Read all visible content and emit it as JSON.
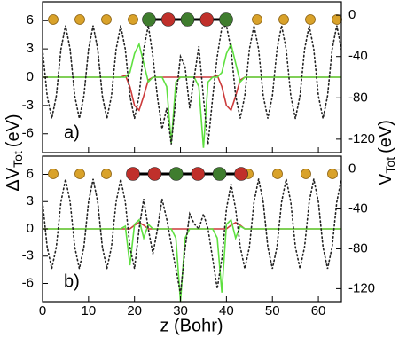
{
  "chart_data": [
    {
      "type": "line",
      "panel_label": "a)",
      "ylabel": {
        "text": "ΔV",
        "sub": "Tot",
        "unit": "(eV)"
      },
      "y2label": {
        "text": "V",
        "sub": "Tot",
        "unit": "(eV)"
      },
      "x": [
        0,
        1,
        2,
        3,
        4,
        5,
        6,
        7,
        8,
        9,
        10,
        11,
        12,
        13,
        14,
        15,
        16,
        17,
        18,
        19,
        20,
        21,
        22,
        23,
        24,
        25,
        26,
        27,
        28,
        29,
        30,
        31,
        32,
        33,
        34,
        35,
        36,
        37,
        38,
        39,
        40,
        41,
        42,
        43,
        44,
        45,
        46,
        47,
        48,
        49,
        50,
        51,
        52,
        53,
        54,
        55,
        56,
        57,
        58,
        59,
        60,
        61,
        62,
        63,
        64,
        65
      ],
      "xlim": [
        0,
        65
      ],
      "xticks": [
        0,
        10,
        20,
        30,
        40,
        50,
        60
      ],
      "ylim": [
        -8,
        8
      ],
      "yticks": [
        -6,
        -3,
        0,
        3,
        6
      ],
      "y2lim": [
        -133,
        13
      ],
      "y2ticks": [
        -120,
        -80,
        -40,
        0
      ],
      "series": [
        {
          "color": "#cc3b3b",
          "values": [
            0,
            0,
            0,
            0,
            0,
            0,
            0,
            0,
            0,
            0,
            0,
            0,
            0,
            0,
            0,
            0,
            0,
            0,
            0.2,
            -1,
            -3,
            -3.5,
            -2,
            -0.3,
            0,
            0,
            0,
            0,
            0,
            0,
            0,
            0,
            0,
            0,
            0,
            0,
            0,
            0,
            0.2,
            -1,
            -3,
            -3.5,
            -2,
            -0.3,
            0,
            0,
            0,
            0,
            0,
            0,
            0,
            0,
            0,
            0,
            0,
            0,
            0,
            0,
            0,
            0,
            0,
            0,
            0,
            0,
            0,
            0
          ]
        },
        {
          "color": "#5fe040",
          "values": [
            0,
            0,
            0,
            0,
            0,
            0,
            0,
            0,
            0,
            0,
            0,
            0,
            0,
            0,
            0,
            0,
            0,
            0,
            0,
            0.5,
            2.5,
            3.5,
            1.5,
            -0.5,
            0,
            0,
            0,
            -1,
            -7,
            -0.5,
            0,
            0,
            0,
            0,
            -1,
            -7.5,
            -0.5,
            0,
            0,
            0.5,
            2.5,
            3.5,
            1.5,
            -0.5,
            0,
            0,
            0,
            0,
            0,
            0,
            0,
            0,
            0,
            0,
            0,
            0,
            0,
            0,
            0,
            0,
            0,
            0,
            0,
            0,
            0,
            0
          ]
        },
        {
          "color": "#222222",
          "axis": "y2",
          "dotted": true,
          "values": [
            -33,
            -78,
            -100,
            -78,
            -33,
            -10,
            -33,
            -78,
            -100,
            -78,
            -33,
            -10,
            -33,
            -78,
            -100,
            -78,
            -33,
            -10,
            -33,
            -78,
            -100,
            -78,
            -33,
            -10,
            -40,
            -80,
            -110,
            -90,
            -125,
            -80,
            -40,
            -50,
            -90,
            -60,
            -30,
            -80,
            -125,
            -80,
            -40,
            -12,
            -10,
            -33,
            -78,
            -100,
            -78,
            -33,
            -10,
            -33,
            -78,
            -100,
            -78,
            -33,
            -10,
            -33,
            -78,
            -100,
            -78,
            -33,
            -10,
            -33,
            -78,
            -100,
            -78,
            -33,
            -10,
            -33
          ]
        }
      ]
    },
    {
      "type": "line",
      "panel_label": "b)",
      "xlabel": "z (Bohr)",
      "x": [
        0,
        1,
        2,
        3,
        4,
        5,
        6,
        7,
        8,
        9,
        10,
        11,
        12,
        13,
        14,
        15,
        16,
        17,
        18,
        19,
        20,
        21,
        22,
        23,
        24,
        25,
        26,
        27,
        28,
        29,
        30,
        31,
        32,
        33,
        34,
        35,
        36,
        37,
        38,
        39,
        40,
        41,
        42,
        43,
        44,
        45,
        46,
        47,
        48,
        49,
        50,
        51,
        52,
        53,
        54,
        55,
        56,
        57,
        58,
        59,
        60,
        61,
        62,
        63,
        64,
        65
      ],
      "xlim": [
        0,
        65
      ],
      "xticks": [
        0,
        10,
        20,
        30,
        40,
        50,
        60
      ],
      "ylim": [
        -8,
        8
      ],
      "yticks": [
        -6,
        -3,
        0,
        3,
        6
      ],
      "y2lim": [
        -133,
        13
      ],
      "y2ticks": [
        -120,
        -80,
        -40,
        0
      ],
      "series": [
        {
          "color": "#cc3b3b",
          "values": [
            0,
            0,
            0,
            0,
            0,
            0,
            0,
            0,
            0,
            0,
            0,
            0,
            0,
            0,
            0,
            0,
            0,
            0,
            0,
            0,
            0.4,
            0.7,
            0.4,
            0,
            0,
            0,
            0,
            0,
            0,
            0,
            0,
            0,
            0,
            0,
            0,
            0,
            0,
            0,
            0,
            0,
            0,
            0.4,
            0.7,
            0.4,
            0,
            0,
            0,
            0,
            0,
            0,
            0,
            0,
            0,
            0,
            0,
            0,
            0,
            0,
            0,
            0,
            0,
            0,
            0,
            0,
            0,
            0
          ]
        },
        {
          "color": "#5fe040",
          "values": [
            0,
            0,
            0,
            0,
            0,
            0,
            0,
            0,
            0,
            0,
            0,
            0,
            0,
            0,
            0,
            0,
            0,
            0,
            0.3,
            -4,
            0.5,
            1,
            -1,
            0.5,
            0,
            0,
            0,
            0,
            0,
            -1,
            -8,
            -1,
            0,
            0,
            0,
            0,
            0,
            0,
            -1,
            -7,
            0.5,
            1,
            -1,
            0.3,
            0,
            0,
            0,
            0,
            0,
            0,
            0,
            0,
            0,
            0,
            0,
            0,
            0,
            0,
            0,
            0,
            0,
            0,
            0,
            0,
            0,
            0
          ]
        },
        {
          "color": "#222222",
          "axis": "y2",
          "dotted": true,
          "values": [
            -33,
            -78,
            -100,
            -78,
            -33,
            -10,
            -33,
            -78,
            -100,
            -78,
            -33,
            -10,
            -33,
            -78,
            -100,
            -78,
            -33,
            -10,
            -33,
            -78,
            -100,
            -60,
            -30,
            -60,
            -85,
            -60,
            -30,
            -50,
            -75,
            -100,
            -125,
            -80,
            -45,
            -55,
            -60,
            -45,
            -60,
            -90,
            -120,
            -90,
            -40,
            -15,
            -40,
            -78,
            -100,
            -78,
            -33,
            -10,
            -33,
            -78,
            -100,
            -78,
            -33,
            -10,
            -33,
            -78,
            -100,
            -78,
            -33,
            -10,
            -33,
            -78,
            -100,
            -78,
            -33,
            -10
          ]
        }
      ]
    }
  ]
}
